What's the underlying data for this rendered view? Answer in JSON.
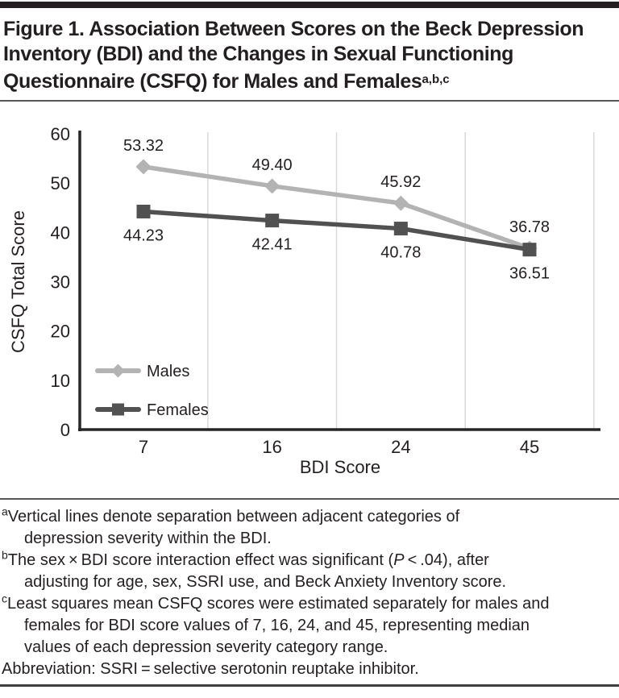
{
  "figure": {
    "title_lines": [
      "Figure 1. Association Between Scores on the Beck Depression",
      "Inventory (BDI) and the Changes in Sexual Functioning",
      "Questionnaire (CSFQ) for Males and Females"
    ],
    "title_superscript": "a,b,c"
  },
  "chart_data": {
    "type": "line",
    "title": "Figure 1. Association Between Scores on the Beck Depression Inventory (BDI) and the Changes in Sexual Functioning Questionnaire (CSFQ) for Males and Females",
    "categories": [
      "7",
      "16",
      "24",
      "45"
    ],
    "xlabel": "BDI Score",
    "ylabel": "CSFQ Total Score",
    "ylim": [
      0,
      60
    ],
    "yticks": [
      0,
      10,
      20,
      30,
      40,
      50,
      60
    ],
    "grid": "vertical lines separating adjacent BDI severity categories, plus one at right edge",
    "grid_color": "#d9d9d9",
    "axis_color": "#262626",
    "legend_position": "inside lower-left",
    "series": [
      {
        "name": "Males",
        "marker": "diamond",
        "color": "#b3b3b3",
        "values": [
          53.32,
          49.4,
          45.92,
          36.78
        ],
        "point_labels": [
          "53.32",
          "49.40",
          "45.92",
          "36.78"
        ],
        "label_side": "above"
      },
      {
        "name": "Females",
        "marker": "square",
        "color": "#515151",
        "values": [
          44.23,
          42.41,
          40.78,
          36.51
        ],
        "point_labels": [
          "44.23",
          "42.41",
          "40.78",
          "36.51"
        ],
        "label_side": "below"
      }
    ]
  },
  "footnotes": {
    "items": [
      {
        "sup": "a",
        "lines": [
          [
            {
              "t": "Vertical lines denote separation between adjacent categories of"
            }
          ],
          [
            {
              "t": "depression severity within the BDI."
            }
          ]
        ]
      },
      {
        "sup": "b",
        "lines": [
          [
            {
              "t": "The sex × BDI score interaction effect was significant ("
            },
            {
              "t": "P",
              "i": true
            },
            {
              "t": " < .04), after"
            }
          ],
          [
            {
              "t": "adjusting for age, sex, SSRI use, and Beck Anxiety Inventory score."
            }
          ]
        ]
      },
      {
        "sup": "c",
        "lines": [
          [
            {
              "t": "Least squares mean CSFQ scores were estimated separately for males and"
            }
          ],
          [
            {
              "t": "females for BDI score values of 7, 16, 24, and 45, representing median"
            }
          ],
          [
            {
              "t": "values of each depression severity category range."
            }
          ]
        ]
      }
    ],
    "abbreviation": "Abbreviation: SSRI = selective serotonin reuptake inhibitor."
  }
}
